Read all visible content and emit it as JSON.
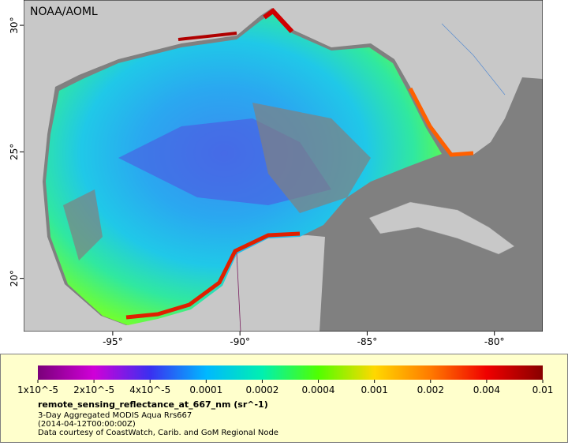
{
  "map": {
    "label": "NOAA/AOML",
    "xlim": [
      -98.5,
      -78.1
    ],
    "ylim": [
      17.9,
      31.0
    ],
    "xticks": [
      {
        "value": -95,
        "label": "-95°"
      },
      {
        "value": -90,
        "label": "-90°"
      },
      {
        "value": -85,
        "label": "-85°"
      },
      {
        "value": -80,
        "label": "-80°"
      }
    ],
    "yticks": [
      {
        "value": 20,
        "label": "20°"
      },
      {
        "value": 25,
        "label": "25°"
      },
      {
        "value": 30,
        "label": "30°"
      }
    ]
  },
  "colorbar": {
    "title": "remote_sensing_reflectance_at_667_nm (sr^-1)",
    "ticks": [
      {
        "value": 1e-05,
        "label": "1x10^-5"
      },
      {
        "value": 2e-05,
        "label": "2x10^-5"
      },
      {
        "value": 4e-05,
        "label": "4x10^-5"
      },
      0.0001,
      0.0002,
      0.0004,
      0.001,
      0.002,
      0.004,
      0.01
    ],
    "colors": [
      "#7a007a",
      "#d000d8",
      "#3a30f0",
      "#00b8ff",
      "#00f0b0",
      "#50ff00",
      "#ffd800",
      "#ff7a00",
      "#f00000",
      "#880000"
    ]
  },
  "caption": [
    "3-Day Aggregated MODIS Aqua Rrs667",
    "(2014-04-12T00:00:00Z)",
    "Data courtesy of CoastWatch, Carib. and GoM Regional Node"
  ]
}
